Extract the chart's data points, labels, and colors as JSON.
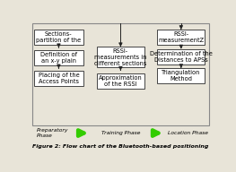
{
  "title": "Figure 2: Flow chart of the Bluetooth-based positioning",
  "bg_color": "#e8e4d8",
  "box_color": "#ffffff",
  "box_border": "#444444",
  "outer_border": "#888888",
  "arrow_color": "#222222",
  "green_arrow": "#33cc00",
  "col1_boxes": [
    "Sections-\npartition of the",
    "Definition of\nan x-y plain",
    "Placing of the\nAccess Points"
  ],
  "col2_boxes": [
    "RSSI-\nmeasurements in\ndifferent sections",
    "Approximation\nof the RSSI"
  ],
  "col3_boxes": [
    "RSSI-\nmeasurementZ",
    "Determination of the\nDistances to APSs",
    "Triangulation\nMethod"
  ],
  "phase1": "Preparatory\nPhase",
  "phase2": "Training Phase",
  "phase3": "Location Phase",
  "fontsize": 4.8,
  "caption_fontsize": 4.5
}
